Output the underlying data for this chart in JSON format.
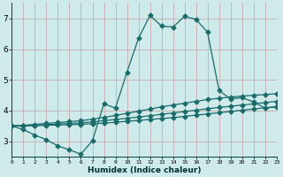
{
  "xlabel": "Humidex (Indice chaleur)",
  "bg_color": "#ceeaea",
  "grid_color": "#c8a0a0",
  "line_color": "#1a6b6b",
  "x_all": [
    0,
    1,
    2,
    3,
    4,
    5,
    6,
    7,
    8,
    9,
    10,
    11,
    12,
    13,
    14,
    15,
    16,
    17,
    18,
    19,
    20,
    21,
    22,
    23
  ],
  "line1_y": [
    3.5,
    3.38,
    3.2,
    3.05,
    2.85,
    2.72,
    2.58,
    3.02,
    4.22,
    4.08,
    5.25,
    6.35,
    7.1,
    6.75,
    6.72,
    7.07,
    6.97,
    6.55,
    4.65,
    4.38,
    4.42,
    4.28,
    4.08,
    4.12
  ],
  "line2_y": [
    3.5,
    3.52,
    3.55,
    3.58,
    3.61,
    3.64,
    3.67,
    3.72,
    3.78,
    3.84,
    3.91,
    3.98,
    4.05,
    4.12,
    4.18,
    4.24,
    4.3,
    4.36,
    4.4,
    4.44,
    4.47,
    4.5,
    4.52,
    4.55
  ],
  "line3_y": [
    3.5,
    3.51,
    3.52,
    3.54,
    3.56,
    3.58,
    3.6,
    3.63,
    3.67,
    3.71,
    3.75,
    3.79,
    3.83,
    3.88,
    3.92,
    3.97,
    4.01,
    4.06,
    4.1,
    4.14,
    4.18,
    4.22,
    4.26,
    4.3
  ],
  "line4_y": [
    3.5,
    3.5,
    3.51,
    3.52,
    3.53,
    3.54,
    3.55,
    3.57,
    3.59,
    3.62,
    3.65,
    3.68,
    3.71,
    3.74,
    3.77,
    3.81,
    3.85,
    3.89,
    3.93,
    3.97,
    4.01,
    4.05,
    4.09,
    4.13
  ],
  "xlim": [
    0,
    23
  ],
  "ylim": [
    2.5,
    7.5
  ],
  "yticks": [
    3,
    4,
    5,
    6,
    7
  ],
  "xticks": [
    0,
    1,
    2,
    3,
    4,
    5,
    6,
    7,
    8,
    9,
    10,
    11,
    12,
    13,
    14,
    15,
    16,
    17,
    18,
    19,
    20,
    21,
    22,
    23
  ]
}
